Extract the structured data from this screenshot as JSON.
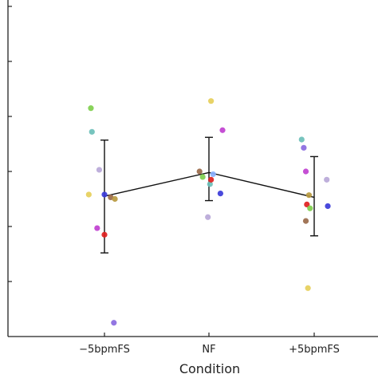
{
  "chart_data": {
    "type": "scatter",
    "xlabel": "Condition",
    "ylabel": "",
    "title": "",
    "categories": [
      "-5bpmFS",
      "NF",
      "+5bpmFS"
    ],
    "ylim": [
      0,
      6
    ],
    "mean_line": {
      "values": [
        2.55,
        2.98,
        2.53
      ],
      "error_upper": [
        3.57,
        3.62,
        3.27
      ],
      "error_lower": [
        1.52,
        2.47,
        1.83
      ]
    },
    "points": [
      {
        "category": 0,
        "offset": -0.13,
        "y": 4.15,
        "color": "#7fcf4d"
      },
      {
        "category": 0,
        "offset": -0.12,
        "y": 3.72,
        "color": "#6bbfb8"
      },
      {
        "category": 0,
        "offset": -0.05,
        "y": 3.03,
        "color": "#b8a8d8"
      },
      {
        "category": 0,
        "offset": -0.15,
        "y": 2.58,
        "color": "#e6cf5a"
      },
      {
        "category": 0,
        "offset": 0.0,
        "y": 2.58,
        "color": "#3b3bd9"
      },
      {
        "category": 0,
        "offset": 0.06,
        "y": 2.53,
        "color": "#9a6a4a"
      },
      {
        "category": 0,
        "offset": 0.1,
        "y": 2.5,
        "color": "#b89a40"
      },
      {
        "category": 0,
        "offset": -0.07,
        "y": 1.97,
        "color": "#c040d0"
      },
      {
        "category": 0,
        "offset": 0.0,
        "y": 1.85,
        "color": "#e02020"
      },
      {
        "category": 0,
        "offset": 0.09,
        "y": 0.25,
        "color": "#8a6ae0"
      },
      {
        "category": 1,
        "offset": 0.02,
        "y": 4.28,
        "color": "#e6cf5a"
      },
      {
        "category": 1,
        "offset": 0.13,
        "y": 3.75,
        "color": "#c040d0"
      },
      {
        "category": 1,
        "offset": -0.09,
        "y": 3.0,
        "color": "#9a6a4a"
      },
      {
        "category": 1,
        "offset": -0.06,
        "y": 2.9,
        "color": "#7fcf4d"
      },
      {
        "category": 1,
        "offset": 0.04,
        "y": 2.95,
        "color": "#8ab0ff"
      },
      {
        "category": 1,
        "offset": 0.01,
        "y": 2.77,
        "color": "#6bbfb8"
      },
      {
        "category": 1,
        "offset": 0.02,
        "y": 2.85,
        "color": "#e02020"
      },
      {
        "category": 1,
        "offset": 0.11,
        "y": 2.6,
        "color": "#3b3bd9"
      },
      {
        "category": 1,
        "offset": -0.01,
        "y": 2.17,
        "color": "#b8a8d8"
      },
      {
        "category": 2,
        "offset": -0.12,
        "y": 3.58,
        "color": "#6bbfb8"
      },
      {
        "category": 2,
        "offset": -0.1,
        "y": 3.43,
        "color": "#8a6ae0"
      },
      {
        "category": 2,
        "offset": 0.12,
        "y": 2.85,
        "color": "#b8a8d8"
      },
      {
        "category": 2,
        "offset": -0.08,
        "y": 3.0,
        "color": "#c040d0"
      },
      {
        "category": 2,
        "offset": -0.05,
        "y": 2.57,
        "color": "#b89a40"
      },
      {
        "category": 2,
        "offset": -0.07,
        "y": 2.4,
        "color": "#e02020"
      },
      {
        "category": 2,
        "offset": -0.04,
        "y": 2.33,
        "color": "#7fcf4d"
      },
      {
        "category": 2,
        "offset": 0.13,
        "y": 2.37,
        "color": "#3b3bd9"
      },
      {
        "category": 2,
        "offset": -0.08,
        "y": 2.1,
        "color": "#9a6a4a"
      },
      {
        "category": 2,
        "offset": -0.06,
        "y": 0.88,
        "color": "#e6cf5a"
      }
    ],
    "colors": {
      "axis": "#222222",
      "line": "#111111"
    }
  }
}
